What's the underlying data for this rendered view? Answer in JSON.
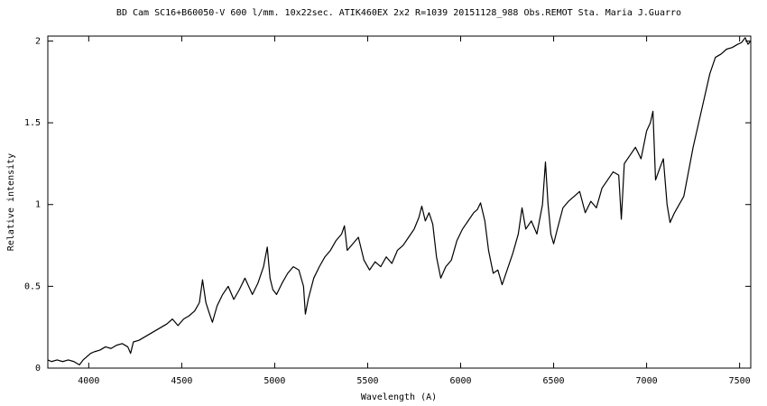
{
  "chart_data": {
    "type": "line",
    "title": "BD Cam SC16+B60050-V 600 l/mm. 10x22sec. ATIK460EX  2x2 R=1039 20151128_988 Obs.REMOT Sta. Maria  J.Guarro",
    "xlabel": "Wavelength (A)",
    "ylabel": "Relative intensity",
    "xlim": [
      3780,
      7560
    ],
    "ylim": [
      0,
      2.03
    ],
    "xticks": [
      4000,
      4500,
      5000,
      5500,
      6000,
      6500,
      7000,
      7500
    ],
    "yticks": [
      0,
      0.5,
      1,
      1.5,
      2
    ],
    "color": "#000000",
    "x": [
      3780,
      3800,
      3830,
      3860,
      3890,
      3920,
      3950,
      3970,
      3990,
      4010,
      4030,
      4060,
      4090,
      4120,
      4150,
      4180,
      4210,
      4225,
      4240,
      4270,
      4300,
      4330,
      4360,
      4390,
      4420,
      4450,
      4480,
      4510,
      4540,
      4570,
      4595,
      4612,
      4630,
      4650,
      4665,
      4690,
      4720,
      4750,
      4780,
      4810,
      4840,
      4860,
      4880,
      4910,
      4940,
      4960,
      4975,
      4990,
      5010,
      5040,
      5070,
      5100,
      5130,
      5155,
      5165,
      5180,
      5210,
      5240,
      5270,
      5300,
      5330,
      5360,
      5375,
      5390,
      5420,
      5450,
      5480,
      5510,
      5540,
      5570,
      5600,
      5630,
      5660,
      5690,
      5720,
      5750,
      5775,
      5791,
      5810,
      5830,
      5850,
      5870,
      5893,
      5920,
      5950,
      5980,
      6010,
      6040,
      6070,
      6090,
      6107,
      6130,
      6150,
      6175,
      6200,
      6223,
      6250,
      6280,
      6310,
      6330,
      6350,
      6380,
      6410,
      6440,
      6456,
      6470,
      6485,
      6500,
      6520,
      6550,
      6580,
      6610,
      6640,
      6670,
      6700,
      6730,
      6760,
      6790,
      6820,
      6850,
      6864,
      6880,
      6910,
      6940,
      6970,
      7000,
      7020,
      7034,
      7048,
      7070,
      7090,
      7110,
      7126,
      7150,
      7175,
      7200,
      7225,
      7250,
      7280,
      7310,
      7340,
      7370,
      7400,
      7430,
      7460,
      7490,
      7510,
      7530,
      7545,
      7560
    ],
    "values": [
      0.05,
      0.04,
      0.05,
      0.04,
      0.05,
      0.04,
      0.02,
      0.05,
      0.07,
      0.09,
      0.1,
      0.11,
      0.13,
      0.12,
      0.14,
      0.15,
      0.13,
      0.09,
      0.16,
      0.17,
      0.19,
      0.21,
      0.23,
      0.25,
      0.27,
      0.3,
      0.26,
      0.3,
      0.32,
      0.35,
      0.4,
      0.54,
      0.4,
      0.33,
      0.28,
      0.38,
      0.45,
      0.5,
      0.42,
      0.48,
      0.55,
      0.5,
      0.45,
      0.52,
      0.62,
      0.74,
      0.55,
      0.48,
      0.45,
      0.52,
      0.58,
      0.62,
      0.6,
      0.5,
      0.33,
      0.42,
      0.55,
      0.62,
      0.68,
      0.72,
      0.78,
      0.82,
      0.87,
      0.72,
      0.76,
      0.8,
      0.66,
      0.6,
      0.65,
      0.62,
      0.68,
      0.64,
      0.72,
      0.75,
      0.8,
      0.85,
      0.92,
      0.99,
      0.9,
      0.95,
      0.88,
      0.68,
      0.55,
      0.62,
      0.66,
      0.78,
      0.85,
      0.9,
      0.95,
      0.97,
      1.01,
      0.9,
      0.72,
      0.58,
      0.6,
      0.51,
      0.6,
      0.7,
      0.82,
      0.98,
      0.85,
      0.9,
      0.82,
      1.0,
      1.26,
      1.0,
      0.82,
      0.76,
      0.85,
      0.98,
      1.02,
      1.05,
      1.08,
      0.95,
      1.02,
      0.98,
      1.1,
      1.15,
      1.2,
      1.18,
      0.91,
      1.25,
      1.3,
      1.35,
      1.28,
      1.45,
      1.5,
      1.57,
      1.15,
      1.22,
      1.28,
      1.0,
      0.89,
      0.95,
      1.0,
      1.05,
      1.2,
      1.35,
      1.5,
      1.65,
      1.8,
      1.9,
      1.92,
      1.95,
      1.96,
      1.98,
      1.99,
      2.02,
      1.98,
      2.0
    ]
  }
}
